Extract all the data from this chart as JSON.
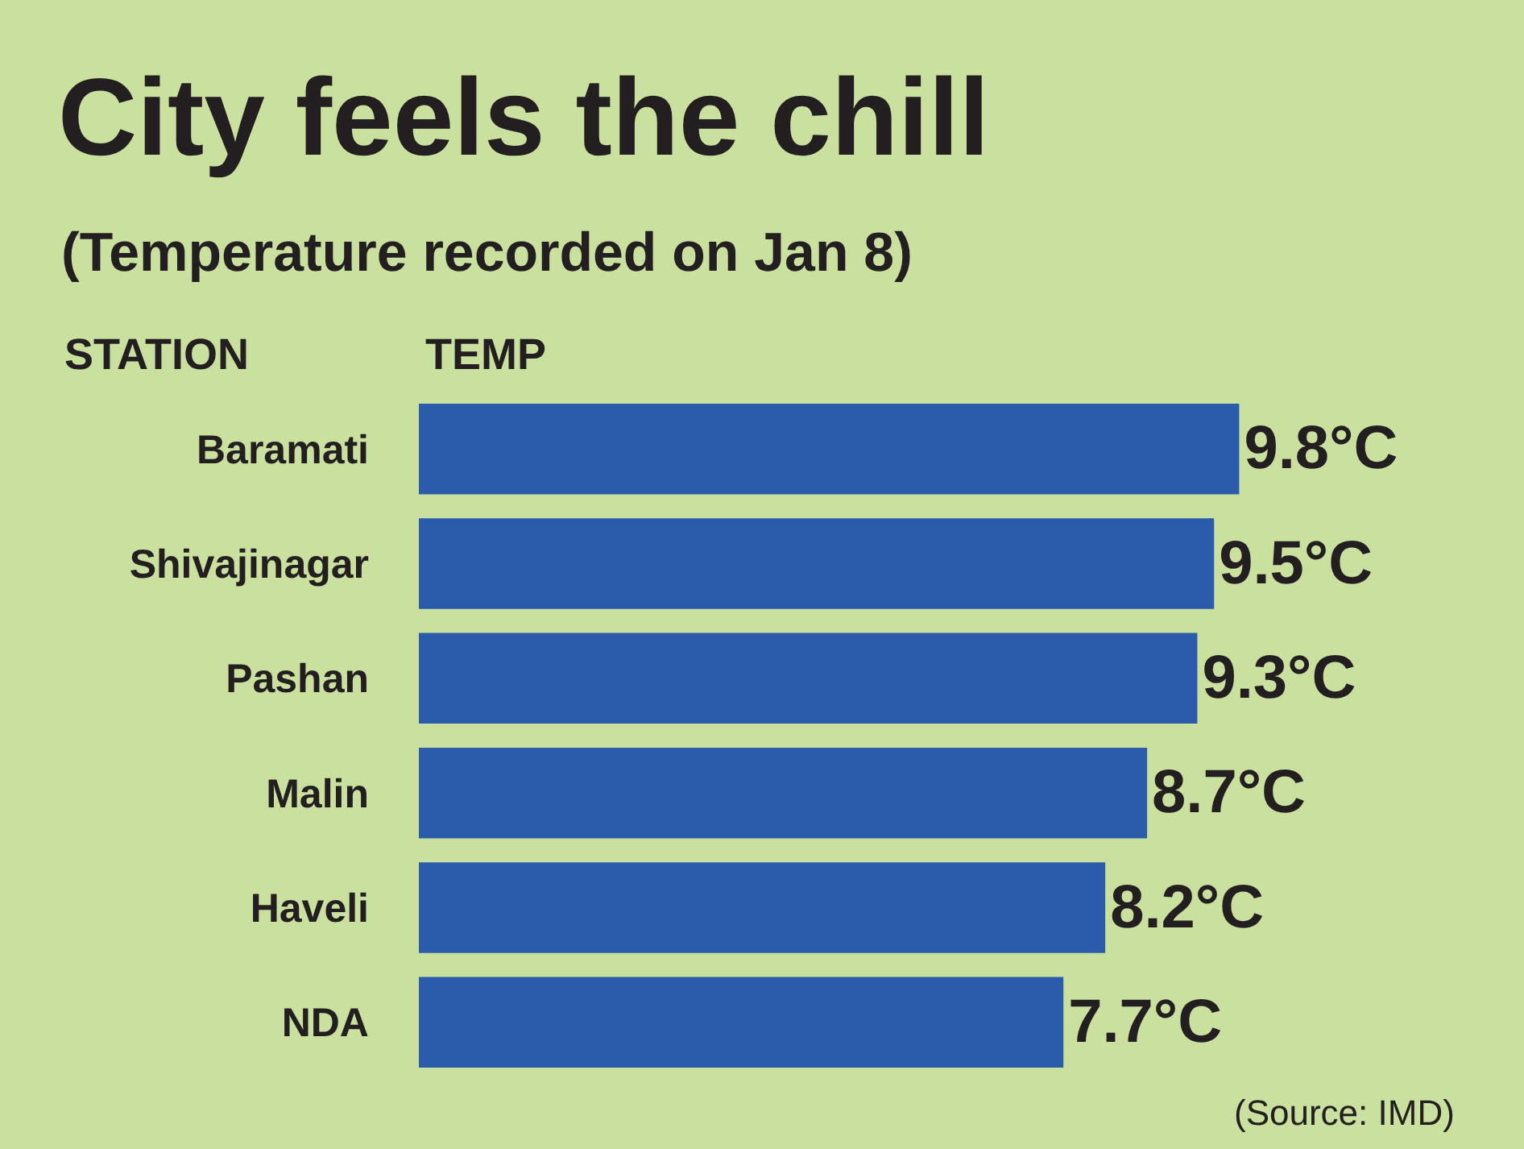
{
  "chart_data": {
    "type": "bar",
    "orientation": "horizontal",
    "title": "City feels the chill",
    "subtitle": "(Temperature recorded on Jan 8)",
    "annotations": [
      "STATION",
      "TEMP",
      "(Source: IMD)"
    ],
    "categories": [
      "Baramati",
      "Shivajinagar",
      "Pashan",
      "Malin",
      "Haveli",
      "NDA"
    ],
    "values": [
      9.8,
      9.5,
      9.3,
      8.7,
      8.2,
      7.7
    ],
    "value_labels": [
      "9.8°C",
      "9.5°C",
      "9.3°C",
      "8.7°C",
      "8.2°C",
      "7.7°C"
    ],
    "color": "#2a5cab",
    "legend": false
  }
}
